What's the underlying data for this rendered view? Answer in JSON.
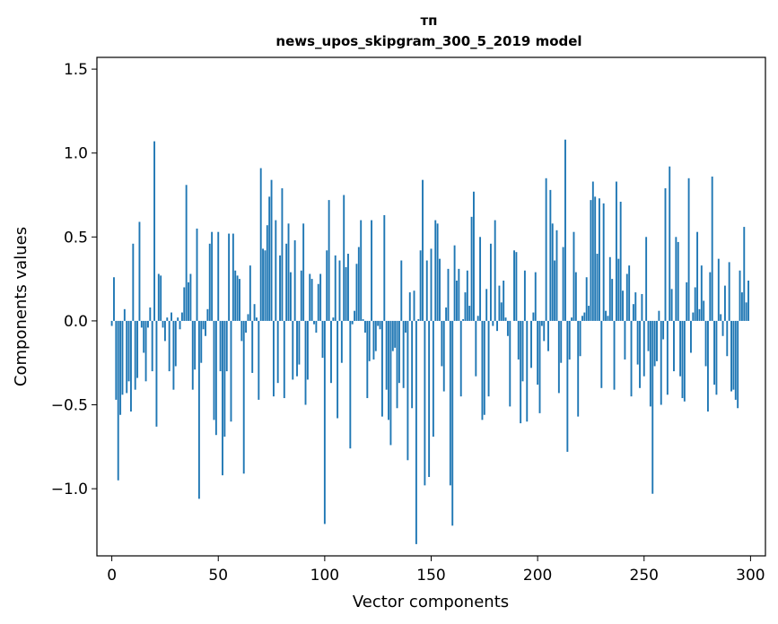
{
  "chart_data": {
    "type": "bar",
    "title_line1": "тп",
    "title_line2": "news_upos_skipgram_300_5_2019 model",
    "xlabel": "Vector components",
    "ylabel": "Components values",
    "xlim": [
      -7,
      307
    ],
    "ylim": [
      -1.4,
      1.57
    ],
    "xticks": [
      0,
      50,
      100,
      150,
      200,
      250,
      300
    ],
    "xtick_labels": [
      "0",
      "50",
      "100",
      "150",
      "200",
      "250",
      "300"
    ],
    "yticks": [
      -1.0,
      -0.5,
      0.0,
      0.5,
      1.0,
      1.5
    ],
    "ytick_labels": [
      "−1.0",
      "−0.5",
      "0.0",
      "0.5",
      "1.0",
      "1.5"
    ],
    "bar_color": "#1f77b4",
    "series": [
      {
        "name": "components",
        "x_start": 0,
        "values": [
          -0.03,
          0.26,
          -0.47,
          -0.95,
          -0.56,
          -0.44,
          0.07,
          -0.43,
          -0.36,
          -0.54,
          0.46,
          -0.41,
          -0.34,
          0.59,
          -0.04,
          -0.19,
          -0.36,
          -0.04,
          0.08,
          -0.3,
          1.07,
          -0.63,
          0.28,
          0.27,
          -0.04,
          -0.12,
          0.02,
          -0.3,
          0.05,
          -0.41,
          -0.27,
          0.02,
          -0.05,
          0.05,
          0.2,
          0.81,
          0.23,
          0.28,
          -0.41,
          -0.29,
          0.55,
          -1.06,
          -0.25,
          -0.05,
          -0.09,
          0.07,
          0.46,
          0.53,
          -0.59,
          -0.68,
          0.53,
          -0.3,
          -0.92,
          -0.69,
          -0.3,
          0.52,
          -0.6,
          0.52,
          0.3,
          0.27,
          0.25,
          -0.12,
          -0.91,
          -0.07,
          0.04,
          0.33,
          -0.31,
          0.1,
          0.02,
          -0.47,
          0.91,
          0.43,
          0.42,
          0.57,
          0.74,
          0.84,
          -0.45,
          0.6,
          -0.37,
          0.39,
          0.79,
          -0.46,
          0.46,
          0.58,
          0.29,
          -0.35,
          0.48,
          -0.33,
          -0.26,
          0.3,
          0.58,
          -0.5,
          -0.35,
          0.28,
          0.25,
          -0.02,
          -0.07,
          0.22,
          0.28,
          -0.22,
          -1.21,
          0.42,
          0.72,
          -0.37,
          0.02,
          0.39,
          -0.58,
          0.36,
          -0.25,
          0.75,
          0.32,
          0.4,
          -0.76,
          -0.02,
          0.06,
          0.34,
          0.44,
          0.6,
          0.01,
          -0.07,
          -0.46,
          -0.24,
          0.6,
          -0.23,
          -0.18,
          -0.03,
          -0.05,
          -0.57,
          0.63,
          -0.41,
          -0.59,
          -0.74,
          -0.18,
          -0.16,
          -0.52,
          -0.37,
          0.36,
          -0.4,
          -0.07,
          -0.83,
          0.17,
          -0.52,
          0.18,
          -1.33,
          0.01,
          0.42,
          0.84,
          -0.98,
          0.36,
          -0.93,
          0.43,
          -0.69,
          0.6,
          0.58,
          0.37,
          -0.27,
          -0.42,
          0.08,
          0.31,
          -0.98,
          -1.22,
          0.45,
          0.24,
          0.31,
          -0.45,
          0.01,
          0.17,
          0.3,
          0.09,
          0.62,
          0.77,
          -0.33,
          0.03,
          0.5,
          -0.59,
          -0.56,
          0.19,
          -0.45,
          0.46,
          -0.03,
          0.6,
          -0.06,
          0.21,
          0.11,
          0.24,
          0.02,
          -0.09,
          -0.51,
          0.0,
          0.42,
          0.41,
          -0.23,
          -0.61,
          -0.36,
          0.3,
          -0.6,
          0.0,
          -0.28,
          0.05,
          0.29,
          -0.38,
          -0.55,
          -0.03,
          -0.12,
          0.85,
          -0.18,
          0.78,
          0.58,
          0.36,
          0.54,
          -0.43,
          -0.25,
          0.44,
          1.08,
          -0.78,
          -0.23,
          0.02,
          0.53,
          0.29,
          -0.57,
          -0.21,
          0.03,
          0.05,
          0.26,
          0.09,
          0.72,
          0.83,
          0.74,
          0.4,
          0.73,
          -0.4,
          0.7,
          0.06,
          0.03,
          0.38,
          0.25,
          -0.41,
          0.83,
          0.37,
          0.71,
          0.18,
          -0.23,
          0.28,
          0.33,
          -0.45,
          0.1,
          0.17,
          -0.26,
          -0.4,
          0.16,
          -0.33,
          0.5,
          -0.18,
          -0.51,
          -1.03,
          -0.27,
          -0.24,
          0.06,
          -0.5,
          -0.11,
          0.79,
          -0.44,
          0.92,
          0.19,
          -0.3,
          0.5,
          0.47,
          -0.33,
          -0.46,
          -0.48,
          0.23,
          0.85,
          -0.19,
          0.05,
          0.2,
          0.53,
          0.07,
          0.33,
          0.12,
          -0.27,
          -0.54,
          0.29,
          0.86,
          -0.38,
          -0.44,
          0.37,
          0.04,
          -0.09,
          0.21,
          -0.21,
          0.35,
          -0.42,
          -0.41,
          -0.47,
          -0.52,
          0.3,
          0.17,
          0.56,
          0.11,
          0.24
        ]
      }
    ]
  }
}
